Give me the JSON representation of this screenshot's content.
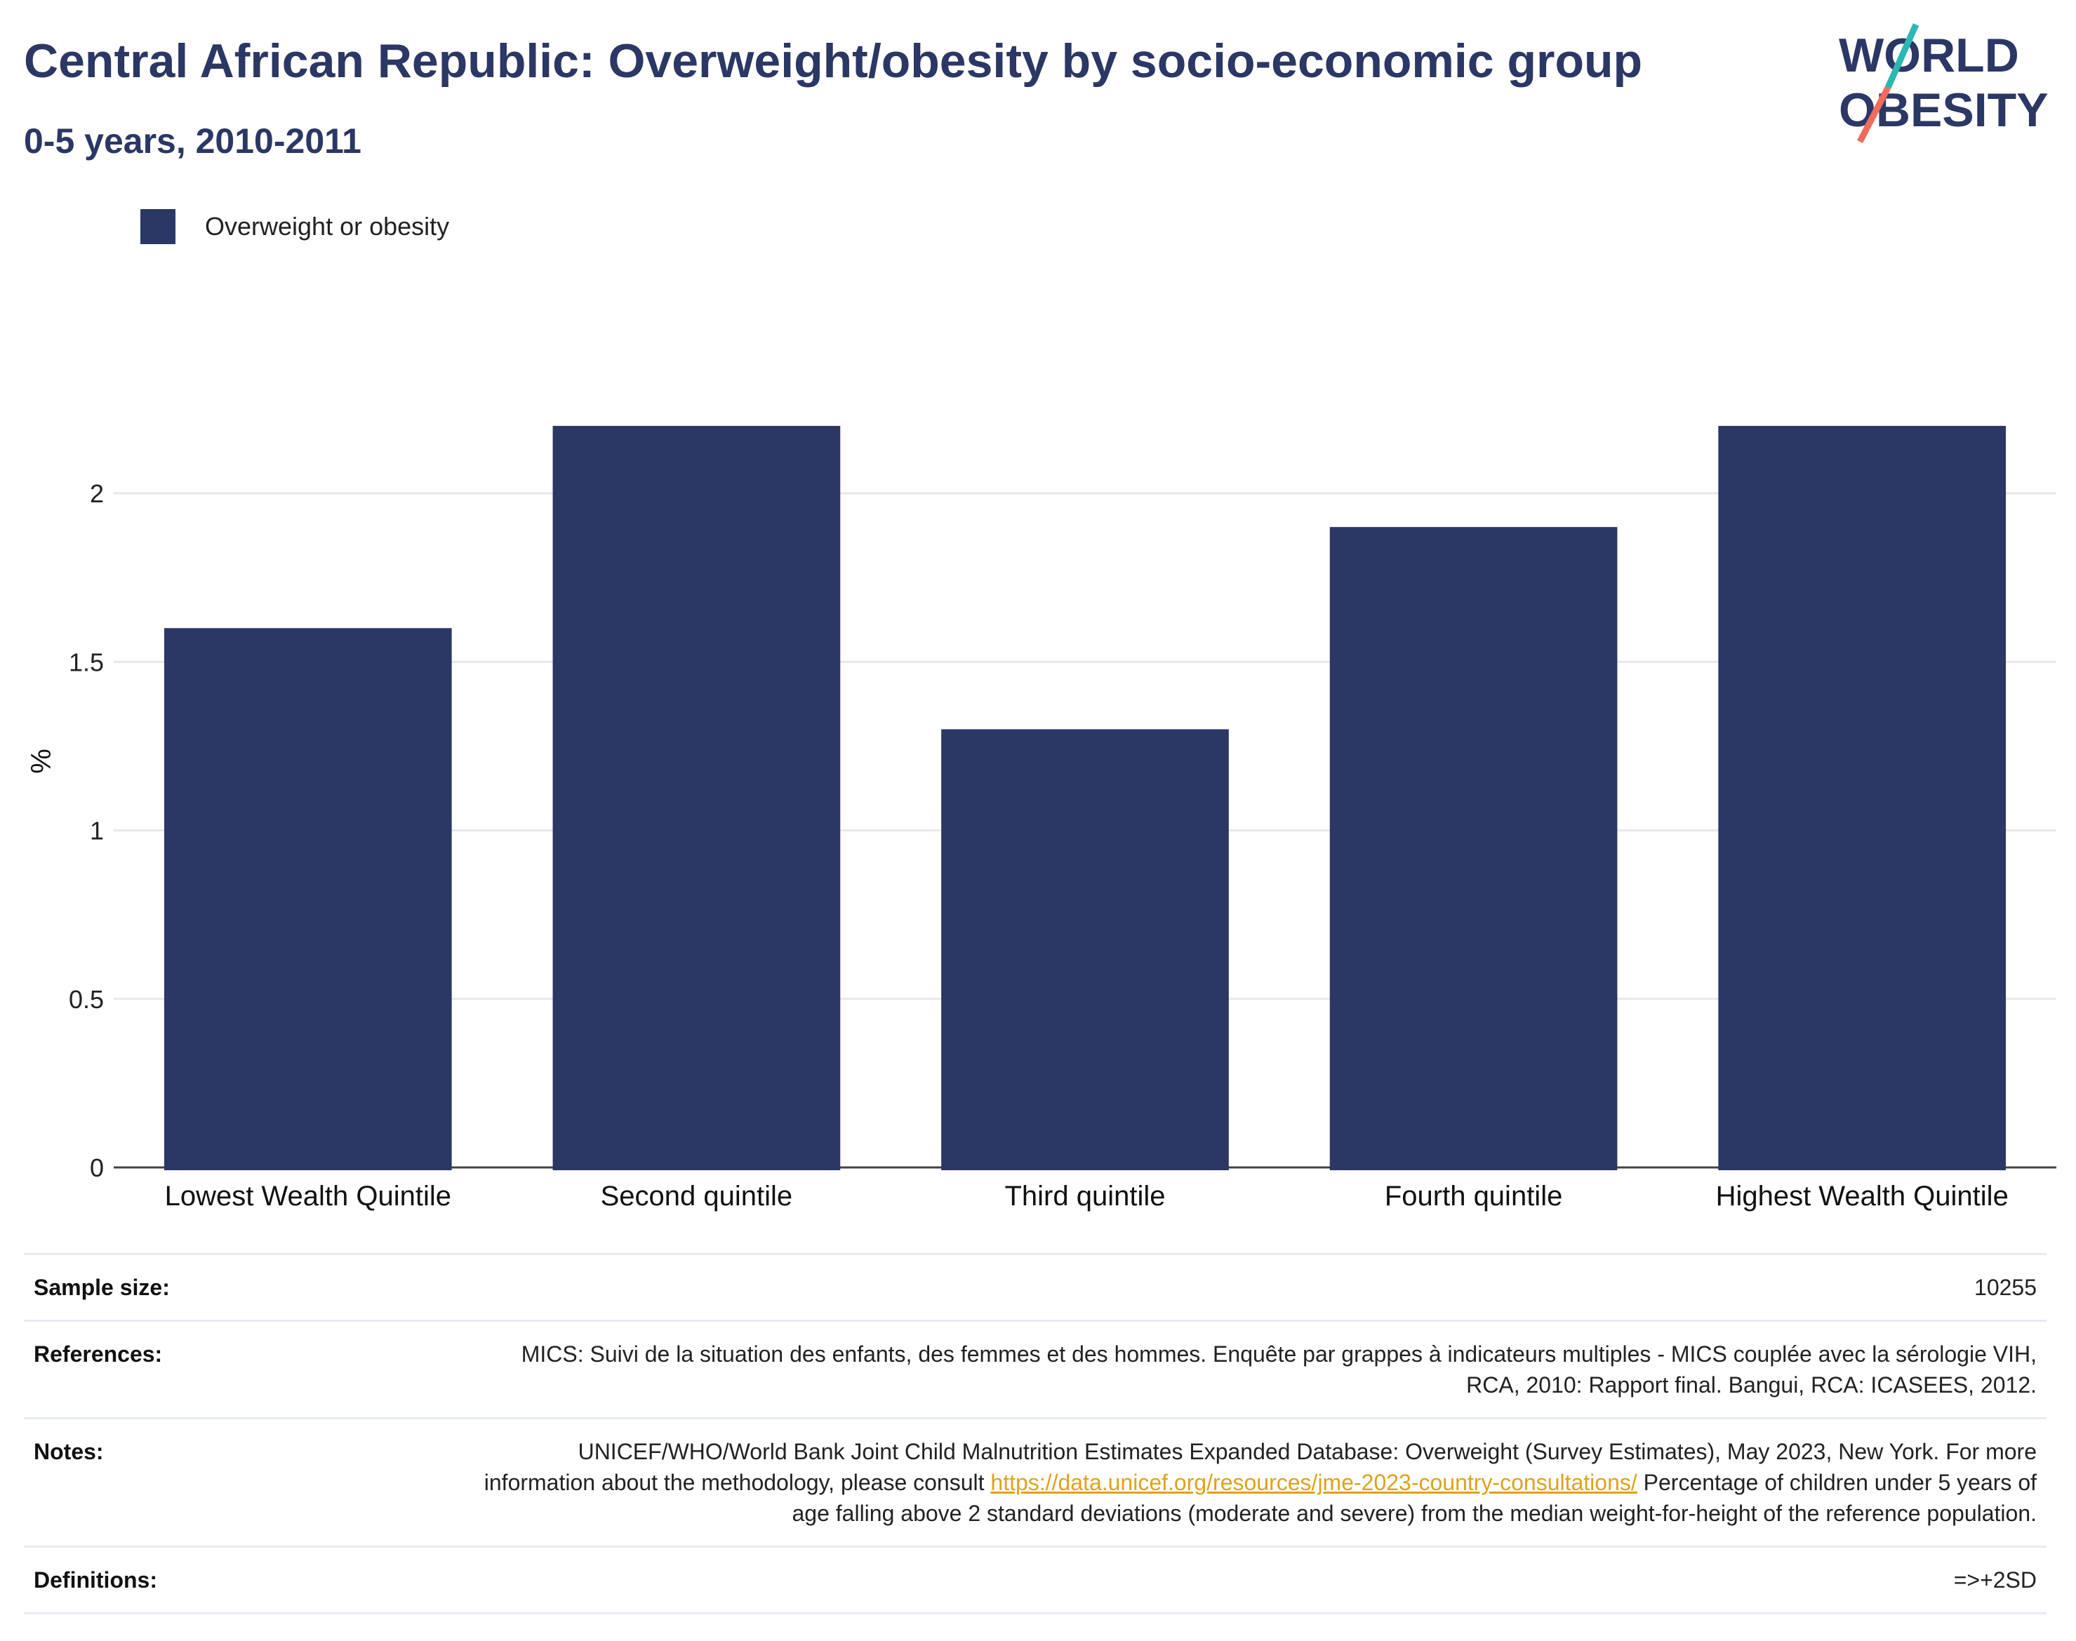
{
  "header": {
    "title": "Central African Republic: Overweight/obesity by socio-economic group",
    "subtitle": "0-5 years, 2010-2011"
  },
  "logo": {
    "line1": "WORLD",
    "line2": "OBESITY",
    "accent_teal": "#2bb7b3",
    "accent_coral": "#f06b5b"
  },
  "legend": {
    "label": "Overweight or obesity",
    "color": "#2b3764"
  },
  "chart_data": {
    "type": "bar",
    "categories": [
      "Lowest Wealth Quintile",
      "Second quintile",
      "Third quintile",
      "Fourth quintile",
      "Highest Wealth Quintile"
    ],
    "series": [
      {
        "name": "Overweight or obesity",
        "values": [
          1.6,
          2.2,
          1.3,
          1.9,
          2.2
        ],
        "color": "#2b3764"
      }
    ],
    "ylabel": "%",
    "ylim": [
      0,
      2.35
    ],
    "yticks": [
      0,
      0.5,
      1,
      1.5,
      2
    ],
    "ytick_labels": [
      "0",
      "0.5",
      "1",
      "1.5",
      "2"
    ],
    "grid": true,
    "legend_position": "top-left"
  },
  "info": {
    "sample_size_label": "Sample size:",
    "sample_size_value": "10255",
    "references_label": "References:",
    "references_value": "MICS: Suivi de la situation des enfants, des femmes et des hommes. Enquête par grappes à indicateurs multiples - MICS couplée avec la sérologie VIH, RCA, 2010: Rapport final. Bangui, RCA: ICASEES, 2012.",
    "notes_label": "Notes:",
    "notes_text_1": "UNICEF/WHO/World Bank Joint Child Malnutrition Estimates Expanded Database: Overweight (Survey Estimates), May 2023, New York. For more information about the methodology, please consult",
    "notes_link": "https://data.unicef.org/resources/jme-2023-country-consultations/",
    "notes_text_2": "Percentage of children under 5 years of age falling above 2 standard deviations (moderate and severe) from the median weight-for-height of the reference population.",
    "definitions_label": "Definitions:",
    "definitions_value": "=>+2SD"
  }
}
